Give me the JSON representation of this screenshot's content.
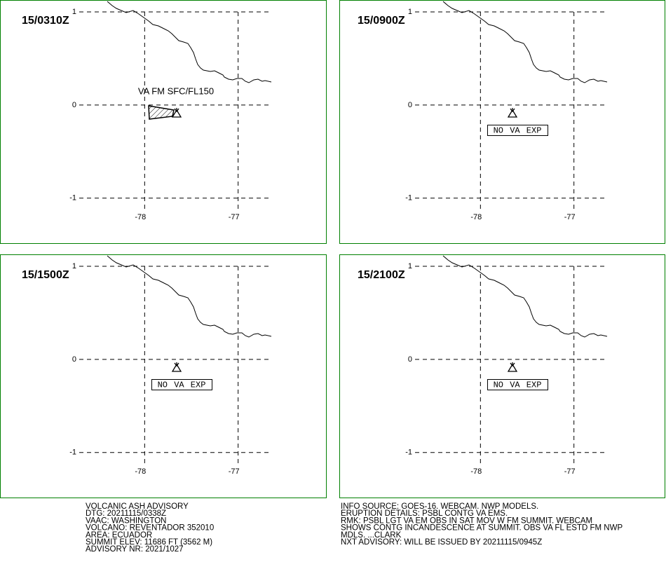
{
  "map": {
    "xlim": [
      -78.7,
      -76.66
    ],
    "ylim": [
      -1.13,
      1
    ],
    "xticks": [
      -78,
      -77
    ],
    "yticks": [
      1,
      0,
      -1
    ]
  },
  "panels": [
    {
      "time": "15/0310Z",
      "label": "VA FM SFC/FL150"
    },
    {
      "time": "15/0900Z",
      "label": "NO VA EXP"
    },
    {
      "time": "15/1500Z",
      "label": "NO VA EXP"
    },
    {
      "time": "15/2100Z",
      "label": "NO VA EXP"
    }
  ],
  "advisory_left": [
    "VOLCANIC ASH ADVISORY",
    "DTG: 20211115/0338Z",
    "VAAC: WASHINGTON",
    "VOLCANO: REVENTADOR 352010",
    "AREA: ECUADOR",
    "SUMMIT ELEV: 11686 FT (3562 M)",
    "ADVISORY NR: 2021/1027"
  ],
  "advisory_right": [
    "INFO SOURCE: GOES-16. WEBCAM. NWP MODELS.",
    "ERUPTION DETAILS: PSBL CONTG VA EMS.",
    "RMK: PSBL LGT VA EM OBS IN SAT MOV W FM SUMMIT. WEBCAM",
    "SHOWS CONTG INCANDESCENCE AT SUMMIT. OBS VA FL ESTD FM NWP",
    "MDLS. ...CLARK",
    "NXT ADVISORY: WILL BE ISSUED BY 20211115/0945Z"
  ]
}
